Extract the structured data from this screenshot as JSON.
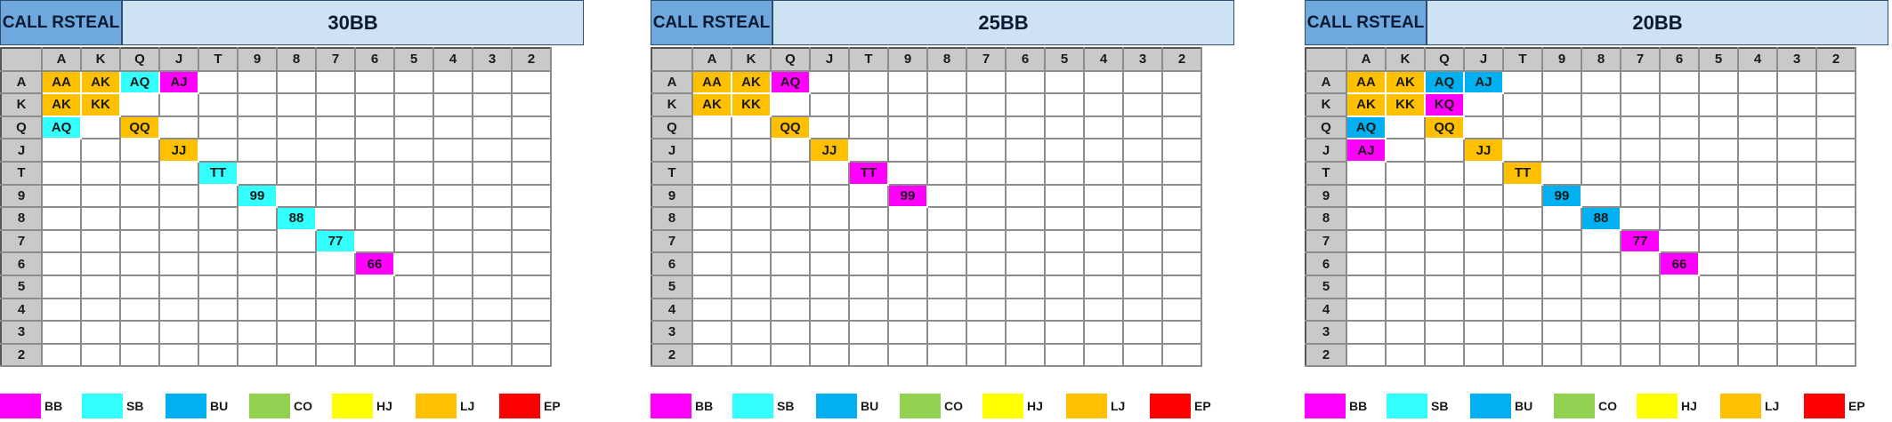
{
  "colors": {
    "BB": "#ff00ff",
    "SB": "#33ffff",
    "BU": "#00b0f0",
    "CO": "#92d050",
    "HJ": "#ffff00",
    "LJ": "#ffc000",
    "EP": "#ff0000"
  },
  "legend": [
    {
      "key": "BB",
      "label": "BB"
    },
    {
      "key": "SB",
      "label": "SB"
    },
    {
      "key": "BU",
      "label": "BU"
    },
    {
      "key": "CO",
      "label": "CO"
    },
    {
      "key": "HJ",
      "label": "HJ"
    },
    {
      "key": "LJ",
      "label": "LJ"
    },
    {
      "key": "EP",
      "label": "EP"
    }
  ],
  "ranks": [
    "A",
    "K",
    "Q",
    "J",
    "T",
    "9",
    "8",
    "7",
    "6",
    "5",
    "4",
    "3",
    "2"
  ],
  "panels": [
    {
      "label": "CALL RSTEAL",
      "title": "30BB",
      "cells": [
        {
          "r": 0,
          "c": 0,
          "text": "AA",
          "pos": "LJ"
        },
        {
          "r": 0,
          "c": 1,
          "text": "AK",
          "pos": "LJ"
        },
        {
          "r": 0,
          "c": 2,
          "text": "AQ",
          "pos": "SB"
        },
        {
          "r": 0,
          "c": 3,
          "text": "AJ",
          "pos": "BB"
        },
        {
          "r": 1,
          "c": 0,
          "text": "AK",
          "pos": "LJ"
        },
        {
          "r": 1,
          "c": 1,
          "text": "KK",
          "pos": "LJ"
        },
        {
          "r": 2,
          "c": 0,
          "text": "AQ",
          "pos": "SB"
        },
        {
          "r": 2,
          "c": 2,
          "text": "QQ",
          "pos": "LJ"
        },
        {
          "r": 3,
          "c": 3,
          "text": "JJ",
          "pos": "LJ"
        },
        {
          "r": 4,
          "c": 4,
          "text": "TT",
          "pos": "SB"
        },
        {
          "r": 5,
          "c": 5,
          "text": "99",
          "pos": "SB"
        },
        {
          "r": 6,
          "c": 6,
          "text": "88",
          "pos": "SB"
        },
        {
          "r": 7,
          "c": 7,
          "text": "77",
          "pos": "SB"
        },
        {
          "r": 8,
          "c": 8,
          "text": "66",
          "pos": "BB"
        }
      ]
    },
    {
      "label": "CALL RSTEAL",
      "title": "25BB",
      "cells": [
        {
          "r": 0,
          "c": 0,
          "text": "AA",
          "pos": "LJ"
        },
        {
          "r": 0,
          "c": 1,
          "text": "AK",
          "pos": "LJ"
        },
        {
          "r": 0,
          "c": 2,
          "text": "AQ",
          "pos": "BB"
        },
        {
          "r": 1,
          "c": 0,
          "text": "AK",
          "pos": "LJ"
        },
        {
          "r": 1,
          "c": 1,
          "text": "KK",
          "pos": "LJ"
        },
        {
          "r": 2,
          "c": 2,
          "text": "QQ",
          "pos": "LJ"
        },
        {
          "r": 3,
          "c": 3,
          "text": "JJ",
          "pos": "LJ"
        },
        {
          "r": 4,
          "c": 4,
          "text": "TT",
          "pos": "BB"
        },
        {
          "r": 5,
          "c": 5,
          "text": "99",
          "pos": "BB"
        }
      ]
    },
    {
      "label": "CALL RSTEAL",
      "title": "20BB",
      "cells": [
        {
          "r": 0,
          "c": 0,
          "text": "AA",
          "pos": "LJ"
        },
        {
          "r": 0,
          "c": 1,
          "text": "AK",
          "pos": "LJ"
        },
        {
          "r": 0,
          "c": 2,
          "text": "AQ",
          "pos": "BU"
        },
        {
          "r": 0,
          "c": 3,
          "text": "AJ",
          "pos": "BU"
        },
        {
          "r": 1,
          "c": 0,
          "text": "AK",
          "pos": "LJ"
        },
        {
          "r": 1,
          "c": 1,
          "text": "KK",
          "pos": "LJ"
        },
        {
          "r": 1,
          "c": 2,
          "text": "KQ",
          "pos": "BB"
        },
        {
          "r": 2,
          "c": 0,
          "text": "AQ",
          "pos": "BU"
        },
        {
          "r": 2,
          "c": 2,
          "text": "QQ",
          "pos": "LJ"
        },
        {
          "r": 3,
          "c": 0,
          "text": "AJ",
          "pos": "BB"
        },
        {
          "r": 3,
          "c": 3,
          "text": "JJ",
          "pos": "LJ"
        },
        {
          "r": 4,
          "c": 4,
          "text": "TT",
          "pos": "LJ"
        },
        {
          "r": 5,
          "c": 5,
          "text": "99",
          "pos": "BU"
        },
        {
          "r": 6,
          "c": 6,
          "text": "88",
          "pos": "BU"
        },
        {
          "r": 7,
          "c": 7,
          "text": "77",
          "pos": "BB"
        },
        {
          "r": 8,
          "c": 8,
          "text": "66",
          "pos": "BB"
        }
      ]
    }
  ]
}
